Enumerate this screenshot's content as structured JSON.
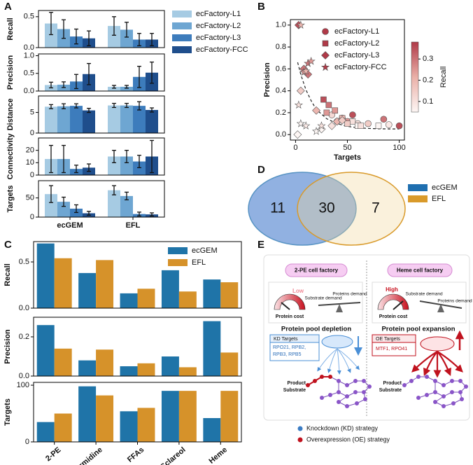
{
  "panel_labels": [
    "A",
    "B",
    "C",
    "D",
    "E"
  ],
  "chart_data": [
    {
      "type": "grouped-bar-panels",
      "categories": [
        "ecGEM",
        "EFL"
      ],
      "series": [
        {
          "name": "ecFactory-L1",
          "color": "#a6cbe3"
        },
        {
          "name": "ecFactory-L2",
          "color": "#6ea6d2"
        },
        {
          "name": "ecFactory-L3",
          "color": "#3d7cbc"
        },
        {
          "name": "ecFactory-FCC",
          "color": "#1f4e8c"
        }
      ],
      "panels": [
        {
          "ylabel": "Recall",
          "ylim": [
            0,
            0.6
          ],
          "yticks": [
            {
              "value": 0,
              "label": "0.0"
            },
            0.5
          ],
          "values": [
            [
              0.39,
              0.35
            ],
            [
              0.3,
              0.29
            ],
            [
              0.18,
              0.13
            ],
            [
              0.15,
              0.13
            ]
          ],
          "errors": [
            [
              0.18,
              0.15
            ],
            [
              0.15,
              0.12
            ],
            [
              0.12,
              0.1
            ],
            [
              0.12,
              0.1
            ]
          ]
        },
        {
          "ylabel": "Precision",
          "ylim": [
            0,
            1.05
          ],
          "yticks": [
            {
              "value": 0,
              "label": "0.0"
            },
            0.5,
            {
              "value": 1,
              "label": "1.0"
            }
          ],
          "values": [
            [
              0.17,
              0.12
            ],
            [
              0.18,
              0.12
            ],
            [
              0.27,
              0.4
            ],
            [
              0.48,
              0.52
            ]
          ],
          "errors": [
            [
              0.08,
              0.04
            ],
            [
              0.08,
              0.04
            ],
            [
              0.2,
              0.3
            ],
            [
              0.3,
              0.3
            ]
          ]
        },
        {
          "ylabel": "Distance",
          "ylim": [
            0,
            9
          ],
          "yticks": [
            0,
            5
          ],
          "values": [
            [
              6.4,
              6.7
            ],
            [
              6.5,
              6.7
            ],
            [
              6.6,
              6.6
            ],
            [
              5.5,
              5.6
            ]
          ],
          "errors": [
            [
              0.5,
              0.5
            ],
            [
              0.6,
              0.5
            ],
            [
              0.5,
              1.0
            ],
            [
              0.5,
              0.5
            ]
          ]
        },
        {
          "ylabel": "Connectivity",
          "ylim": [
            0,
            30
          ],
          "yticks": [
            0,
            10,
            20
          ],
          "values": [
            [
              13,
              15
            ],
            [
              13,
              15
            ],
            [
              5,
              11
            ],
            [
              6,
              15
            ]
          ],
          "errors": [
            [
              11,
              5
            ],
            [
              11,
              5
            ],
            [
              3,
              5
            ],
            [
              3,
              13
            ]
          ]
        },
        {
          "ylabel": "Targets",
          "ylim": [
            0,
            95
          ],
          "yticks": [
            0,
            50
          ],
          "values": [
            [
              60,
              70
            ],
            [
              40,
              55
            ],
            [
              22,
              8
            ],
            [
              10,
              7
            ]
          ],
          "errors": [
            [
              22,
              12
            ],
            [
              12,
              10
            ],
            [
              10,
              5
            ],
            [
              5,
              4
            ]
          ]
        }
      ]
    },
    {
      "type": "scatter",
      "xlabel": "Targets",
      "ylabel": "Precision",
      "xlim": [
        -5,
        105
      ],
      "xticks": [
        0,
        50,
        100
      ],
      "ylim": [
        -0.05,
        1.05
      ],
      "yticks": [
        {
          "value": 0,
          "label": "0.0"
        },
        0.2,
        0.4,
        0.6,
        0.8,
        {
          "value": 1,
          "label": "1.0"
        }
      ],
      "series": [
        {
          "name": "ecFactory-L1",
          "marker": "circle",
          "x": [
            45,
            55,
            85,
            100,
            35,
            60,
            70,
            90,
            40,
            50
          ],
          "y": [
            0.15,
            0.18,
            0.14,
            0.08,
            0.18,
            0.1,
            0.1,
            0.09,
            0.12,
            0.12
          ],
          "recall": [
            0.3,
            0.35,
            0.3,
            0.35,
            0.12,
            0.1,
            0.15,
            0.08,
            0.2,
            0.25
          ]
        },
        {
          "name": "ecFactory-L2",
          "marker": "square",
          "x": [
            27,
            32,
            38,
            45,
            55,
            60,
            80,
            50,
            30,
            63
          ],
          "y": [
            0.32,
            0.27,
            0.22,
            0.15,
            0.12,
            0.08,
            0.08,
            0.1,
            0.2,
            0.08
          ],
          "recall": [
            0.35,
            0.3,
            0.25,
            0.2,
            0.1,
            0.05,
            0.05,
            0.15,
            0.25,
            0.1
          ]
        },
        {
          "name": "ecFactory-L3",
          "marker": "diamond",
          "x": [
            3,
            8,
            12,
            5,
            20,
            25,
            2,
            40,
            45,
            35
          ],
          "y": [
            1.0,
            0.6,
            0.55,
            0.4,
            0.22,
            0.05,
            0.0,
            0.12,
            0.13,
            0.08
          ],
          "recall": [
            0.35,
            0.3,
            0.3,
            0.15,
            0.2,
            0.05,
            0.05,
            0.2,
            0.15,
            0.1
          ]
        },
        {
          "name": "ecFactory-FCC",
          "marker": "star",
          "x": [
            5,
            8,
            10,
            12,
            15,
            3,
            5,
            10,
            20,
            25
          ],
          "y": [
            1.0,
            0.57,
            0.58,
            0.65,
            0.67,
            0.27,
            0.1,
            0.08,
            0.03,
            0.08
          ],
          "recall": [
            0.2,
            0.25,
            0.2,
            0.3,
            0.25,
            0.1,
            0.05,
            0.08,
            0.05,
            0.1
          ]
        }
      ],
      "trend": {
        "x": [
          2,
          5,
          10,
          15,
          20,
          30,
          40,
          50,
          60,
          70,
          80,
          90,
          100
        ],
        "y": [
          0.66,
          0.55,
          0.41,
          0.31,
          0.23,
          0.145,
          0.1,
          0.075,
          0.063,
          0.056,
          0.053,
          0.052,
          0.051
        ]
      },
      "colorbar": {
        "label": "Recall",
        "clim": [
          0.05,
          0.38
        ],
        "ticks": [
          0.1,
          0.2,
          0.3
        ],
        "colors": [
          "#fdf6f4",
          "#eab0a8",
          "#b03a48"
        ]
      }
    },
    {
      "type": "grouped-bar-panels",
      "categories": [
        "2-PE",
        "Spermidine",
        "FFAs",
        "Sclareol",
        "Heme"
      ],
      "series": [
        {
          "name": "ecGEM",
          "color": "#1f74a8"
        },
        {
          "name": "EFL",
          "color": "#d6922a"
        }
      ],
      "panels": [
        {
          "ylabel": "Recall",
          "ylim": [
            0,
            0.72
          ],
          "yticks": [
            {
              "value": 0,
              "label": "0.0"
            },
            0.5
          ],
          "values": [
            [
              0.7,
              0.38,
              0.16,
              0.41,
              0.31
            ],
            [
              0.54,
              0.52,
              0.21,
              0.18,
              0.28
            ]
          ]
        },
        {
          "ylabel": "Precision",
          "ylim": [
            0,
            0.3
          ],
          "yticks": [
            {
              "value": 0,
              "label": "0.0"
            },
            0.2
          ],
          "values": [
            [
              0.26,
              0.08,
              0.05,
              0.1,
              0.28
            ],
            [
              0.14,
              0.135,
              0.065,
              0.045,
              0.12
            ]
          ]
        },
        {
          "ylabel": "Targets",
          "ylim": [
            0,
            105
          ],
          "yticks": [
            0,
            100
          ],
          "values": [
            [
              35,
              98,
              54,
              90,
              42
            ],
            [
              50,
              82,
              60,
              90,
              90
            ]
          ]
        }
      ]
    }
  ],
  "venn": {
    "sets": [
      {
        "name": "ecGEM",
        "color": "#1f6fb0"
      },
      {
        "name": "EFL",
        "color": "#d99a2a"
      }
    ],
    "regions": [
      11,
      30,
      7
    ]
  },
  "diagram": {
    "left": {
      "title": "2-PE cell factory",
      "level": "Low",
      "cost": "Protein cost",
      "substrate": "Substrate demand",
      "proteins": "Proteins demand",
      "outcome": "Protein pool depletion",
      "targets_title": "KD Targets",
      "targets": [
        "RPO21, RPB2,",
        "RPB3, RPB5"
      ],
      "product": "Product",
      "substrate_node": "Substrate"
    },
    "right": {
      "title": "Heme cell factory",
      "level": "High",
      "cost": "Protein cost",
      "substrate": "Substrate demand",
      "proteins": "Proteins demand",
      "outcome": "Protein pool expansion",
      "targets_title": "OE Targets",
      "targets": [
        "MTF1, RPO41"
      ],
      "product": "Product",
      "substrate_node": "Substrate"
    },
    "legend": [
      "Knockdown (KD) strategy",
      "Overexpression (OE) strategy"
    ]
  }
}
